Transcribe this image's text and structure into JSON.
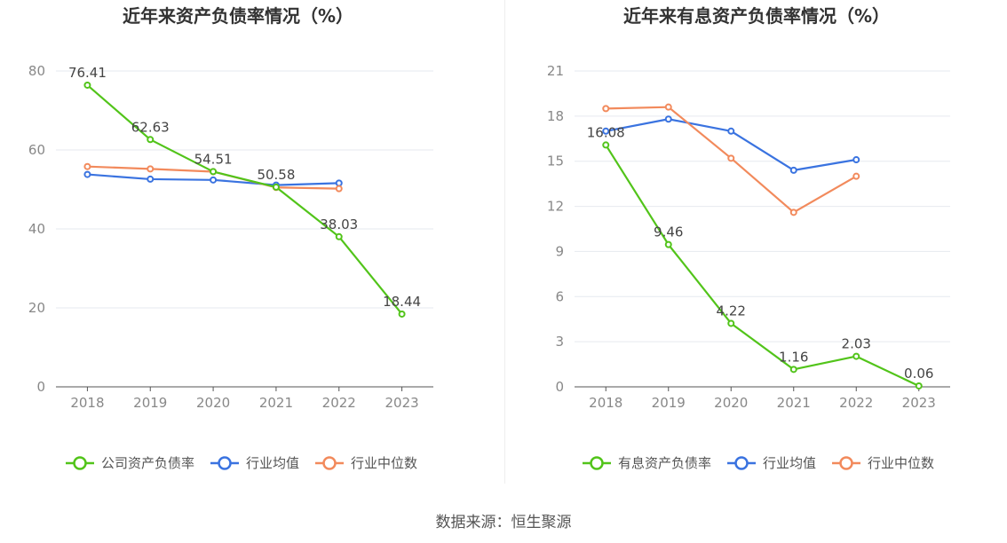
{
  "charts": [
    {
      "title": "近年来资产负债率情况（%）",
      "chart_data": {
        "type": "line",
        "title": "近年来资产负债率情况（%）",
        "categories": [
          "2018",
          "2019",
          "2020",
          "2021",
          "2022",
          "2023"
        ],
        "ylim": [
          0,
          80
        ],
        "yticks": [
          0,
          20,
          40,
          60,
          80
        ],
        "grid": true,
        "legend_position": "bottom",
        "series": [
          {
            "name": "公司资产负债率",
            "color": "#52c41a",
            "values": [
              76.41,
              62.63,
              54.51,
              50.58,
              38.03,
              18.44
            ],
            "labels": [
              "76.41",
              "62.63",
              "54.51",
              "50.58",
              "38.03",
              "18.44"
            ]
          },
          {
            "name": "行业均值",
            "color": "#3a73e0",
            "values": [
              53.8,
              52.6,
              52.4,
              51.1,
              51.6,
              null
            ]
          },
          {
            "name": "行业中位数",
            "color": "#f28a5c",
            "values": [
              55.8,
              55.2,
              54.5,
              50.5,
              50.2,
              null
            ]
          }
        ]
      }
    },
    {
      "title": "近年来有息资产负债率情况（%）",
      "chart_data": {
        "type": "line",
        "title": "近年来有息资产负债率情况（%）",
        "categories": [
          "2018",
          "2019",
          "2020",
          "2021",
          "2022",
          "2023"
        ],
        "ylim": [
          0,
          21
        ],
        "yticks": [
          0,
          3,
          6,
          9,
          12,
          15,
          18,
          21
        ],
        "grid": true,
        "legend_position": "bottom",
        "series": [
          {
            "name": "有息资产负债率",
            "color": "#52c41a",
            "values": [
              16.08,
              9.46,
              4.22,
              1.16,
              2.03,
              0.06
            ],
            "labels": [
              "16.08",
              "9.46",
              "4.22",
              "1.16",
              "2.03",
              "0.06"
            ]
          },
          {
            "name": "行业均值",
            "color": "#3a73e0",
            "values": [
              17.0,
              17.8,
              17.0,
              14.4,
              15.1,
              null
            ]
          },
          {
            "name": "行业中位数",
            "color": "#f28a5c",
            "values": [
              18.5,
              18.6,
              15.2,
              11.6,
              14.0,
              null
            ]
          }
        ]
      }
    }
  ],
  "source_text": "数据来源：恒生聚源"
}
